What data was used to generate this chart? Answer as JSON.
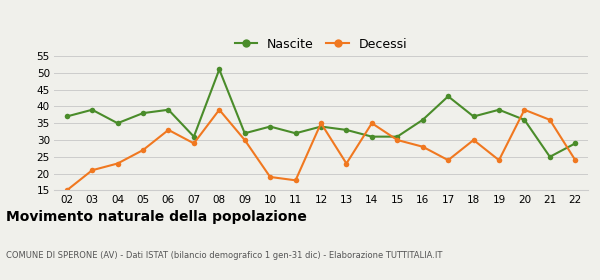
{
  "years": [
    "02",
    "03",
    "04",
    "05",
    "06",
    "07",
    "08",
    "09",
    "10",
    "11",
    "12",
    "13",
    "14",
    "15",
    "16",
    "17",
    "18",
    "19",
    "20",
    "21",
    "22"
  ],
  "nascite": [
    37,
    39,
    35,
    38,
    39,
    31,
    51,
    32,
    34,
    32,
    34,
    33,
    31,
    31,
    36,
    43,
    37,
    39,
    36,
    25,
    29
  ],
  "decessi": [
    15,
    21,
    23,
    27,
    33,
    29,
    39,
    30,
    19,
    18,
    35,
    23,
    35,
    30,
    28,
    24,
    30,
    24,
    39,
    36,
    24
  ],
  "nascite_color": "#4a8c2a",
  "decessi_color": "#f07820",
  "background_color": "#f0f0eb",
  "grid_color": "#cccccc",
  "ylim": [
    15,
    55
  ],
  "yticks": [
    15,
    20,
    25,
    30,
    35,
    40,
    45,
    50,
    55
  ],
  "title": "Movimento naturale della popolazione",
  "subtitle": "COMUNE DI SPERONE (AV) - Dati ISTAT (bilancio demografico 1 gen-31 dic) - Elaborazione TUTTITALIA.IT",
  "legend_nascite": "Nascite",
  "legend_decessi": "Decessi",
  "marker_size": 4,
  "line_width": 1.5
}
